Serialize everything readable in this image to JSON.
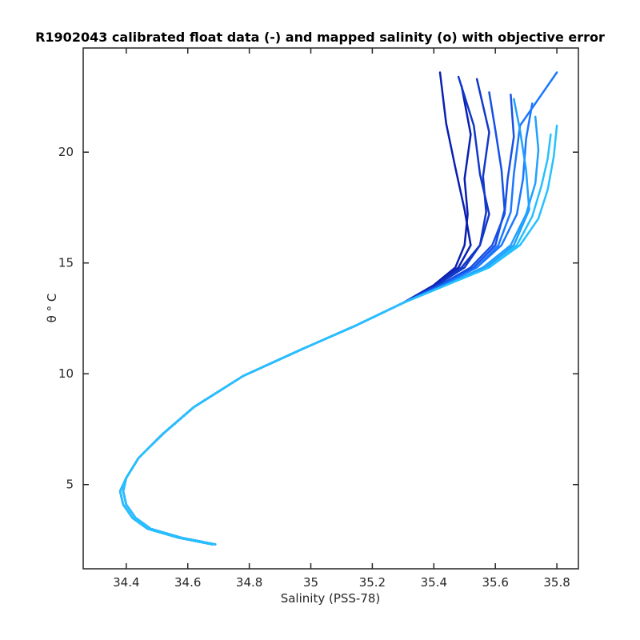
{
  "chart_data": {
    "type": "line",
    "title": "R1902043 calibrated float data (-) and mapped salinity (o) with objective error",
    "xlabel": "Salinity (PSS-78)",
    "ylabel": "θ ° C",
    "xlim": [
      34.26,
      35.87
    ],
    "ylim": [
      1.2,
      24.7
    ],
    "xticks": [
      "34.4",
      "34.6",
      "34.8",
      "35",
      "35.2",
      "35.4",
      "35.6",
      "35.8"
    ],
    "yticks": [
      "5",
      "10",
      "15",
      "20"
    ],
    "grid": false,
    "legend": "none",
    "color_ramp": [
      "#0a1fb0",
      "#1560f0",
      "#25c0ff"
    ],
    "series": [
      {
        "color": "#0a1fb0",
        "x": [
          34.69,
          34.58,
          34.48,
          34.43,
          34.4,
          34.39,
          34.4,
          34.44,
          34.52,
          34.62,
          34.78,
          34.97,
          35.15,
          35.3,
          35.4,
          35.47,
          35.5,
          35.51,
          35.5,
          35.52,
          35.49
        ],
        "y": [
          2.3,
          2.6,
          3.0,
          3.5,
          4.1,
          4.7,
          5.3,
          6.2,
          7.3,
          8.5,
          9.9,
          11.1,
          12.2,
          13.2,
          14.0,
          14.8,
          15.8,
          17.2,
          18.8,
          20.8,
          23.0
        ]
      },
      {
        "color": "#0a1fb0",
        "x": [
          34.68,
          34.57,
          34.47,
          34.42,
          34.39,
          34.38,
          34.4,
          34.44,
          34.52,
          34.62,
          34.78,
          34.97,
          35.15,
          35.3,
          35.41,
          35.48,
          35.52,
          35.5,
          35.47,
          35.44,
          35.42
        ],
        "y": [
          2.3,
          2.6,
          3.0,
          3.5,
          4.1,
          4.7,
          5.3,
          6.2,
          7.3,
          8.5,
          9.9,
          11.1,
          12.2,
          13.2,
          14.0,
          14.8,
          15.8,
          17.4,
          19.3,
          21.3,
          23.6
        ]
      },
      {
        "color": "#1238c8",
        "x": [
          34.69,
          34.58,
          34.48,
          34.43,
          34.4,
          34.39,
          34.4,
          34.44,
          34.52,
          34.62,
          34.78,
          34.97,
          35.15,
          35.3,
          35.41,
          35.49,
          35.55,
          35.57,
          35.56,
          35.58,
          35.54
        ],
        "y": [
          2.3,
          2.6,
          3.0,
          3.5,
          4.1,
          4.7,
          5.3,
          6.2,
          7.3,
          8.5,
          9.9,
          11.1,
          12.2,
          13.2,
          14.0,
          14.8,
          15.8,
          17.3,
          18.9,
          20.9,
          23.3
        ]
      },
      {
        "color": "#1238c8",
        "x": [
          34.68,
          34.57,
          34.47,
          34.42,
          34.39,
          34.38,
          34.4,
          34.44,
          34.52,
          34.62,
          34.78,
          34.97,
          35.15,
          35.3,
          35.41,
          35.5,
          35.55,
          35.58,
          35.55,
          35.53,
          35.48
        ],
        "y": [
          2.3,
          2.6,
          3.0,
          3.5,
          4.1,
          4.7,
          5.3,
          6.2,
          7.3,
          8.5,
          9.9,
          11.1,
          12.2,
          13.2,
          14.0,
          14.8,
          15.8,
          17.2,
          19.0,
          21.2,
          23.4
        ]
      },
      {
        "color": "#1650e6",
        "x": [
          34.69,
          34.58,
          34.48,
          34.43,
          34.4,
          34.39,
          34.4,
          34.44,
          34.52,
          34.62,
          34.78,
          34.97,
          35.15,
          35.3,
          35.42,
          35.52,
          35.59,
          35.63,
          35.64,
          35.66,
          35.65
        ],
        "y": [
          2.3,
          2.6,
          3.0,
          3.5,
          4.1,
          4.7,
          5.3,
          6.2,
          7.3,
          8.5,
          9.9,
          11.1,
          12.2,
          13.2,
          14.0,
          14.8,
          15.8,
          17.2,
          18.8,
          20.7,
          22.6
        ]
      },
      {
        "color": "#1650e6",
        "x": [
          34.68,
          34.57,
          34.47,
          34.42,
          34.39,
          34.38,
          34.4,
          34.44,
          34.52,
          34.62,
          34.78,
          34.97,
          35.15,
          35.3,
          35.43,
          35.53,
          35.6,
          35.63,
          35.62,
          35.6,
          35.58
        ],
        "y": [
          2.3,
          2.6,
          3.0,
          3.5,
          4.1,
          4.7,
          5.3,
          6.2,
          7.3,
          8.5,
          9.9,
          11.1,
          12.2,
          13.2,
          14.0,
          14.8,
          15.8,
          17.4,
          19.2,
          21.0,
          22.7
        ]
      },
      {
        "color": "#1a78ff",
        "x": [
          34.69,
          34.58,
          34.48,
          34.43,
          34.4,
          34.39,
          34.4,
          34.44,
          34.52,
          34.62,
          34.78,
          34.97,
          35.15,
          35.3,
          35.43,
          35.54,
          35.62,
          35.67,
          35.69,
          35.7,
          35.72
        ],
        "y": [
          2.3,
          2.6,
          3.0,
          3.5,
          4.1,
          4.7,
          5.3,
          6.2,
          7.3,
          8.5,
          9.9,
          11.1,
          12.2,
          13.2,
          14.0,
          14.8,
          15.8,
          17.2,
          18.8,
          20.6,
          22.2
        ]
      },
      {
        "color": "#1a78ff",
        "x": [
          34.68,
          34.57,
          34.47,
          34.42,
          34.39,
          34.38,
          34.4,
          34.44,
          34.52,
          34.62,
          34.78,
          34.97,
          35.15,
          35.3,
          35.43,
          35.54,
          35.61,
          35.65,
          35.66,
          35.68,
          35.8
        ],
        "y": [
          2.3,
          2.6,
          3.0,
          3.5,
          4.1,
          4.7,
          5.3,
          6.2,
          7.3,
          8.5,
          9.9,
          11.1,
          12.2,
          13.2,
          14.0,
          14.8,
          15.8,
          17.3,
          19.0,
          21.2,
          23.6
        ]
      },
      {
        "color": "#20a0ff",
        "x": [
          34.69,
          34.58,
          34.48,
          34.43,
          34.4,
          34.39,
          34.4,
          34.44,
          34.52,
          34.62,
          34.78,
          34.97,
          35.15,
          35.3,
          35.44,
          35.56,
          35.65,
          35.7,
          35.73,
          35.74,
          35.73
        ],
        "y": [
          2.3,
          2.6,
          3.0,
          3.5,
          4.1,
          4.7,
          5.3,
          6.2,
          7.3,
          8.5,
          9.9,
          11.1,
          12.2,
          13.2,
          14.0,
          14.8,
          15.8,
          17.2,
          18.6,
          20.1,
          21.6
        ]
      },
      {
        "color": "#20a0ff",
        "x": [
          34.68,
          34.57,
          34.47,
          34.42,
          34.39,
          34.38,
          34.4,
          34.44,
          34.52,
          34.62,
          34.78,
          34.97,
          35.15,
          35.3,
          35.44,
          35.57,
          35.66,
          35.71,
          35.7,
          35.68,
          35.66
        ],
        "y": [
          2.3,
          2.6,
          3.0,
          3.5,
          4.1,
          4.7,
          5.3,
          6.2,
          7.3,
          8.5,
          9.9,
          11.1,
          12.2,
          13.2,
          14.0,
          14.8,
          15.8,
          17.4,
          19.2,
          21.0,
          22.4
        ]
      },
      {
        "color": "#25c0ff",
        "x": [
          34.69,
          34.58,
          34.48,
          34.43,
          34.4,
          34.39,
          34.4,
          34.44,
          34.52,
          34.62,
          34.78,
          34.97,
          35.15,
          35.3,
          35.44,
          35.58,
          35.68,
          35.74,
          35.77,
          35.79,
          35.8
        ],
        "y": [
          2.3,
          2.6,
          3.0,
          3.5,
          4.1,
          4.7,
          5.3,
          6.2,
          7.3,
          8.5,
          9.9,
          11.1,
          12.2,
          13.2,
          14.0,
          14.8,
          15.8,
          17.0,
          18.3,
          19.8,
          21.2
        ]
      },
      {
        "color": "#25c0ff",
        "x": [
          34.68,
          34.57,
          34.47,
          34.42,
          34.39,
          34.38,
          34.4,
          34.44,
          34.52,
          34.62,
          34.78,
          34.97,
          35.15,
          35.3,
          35.44,
          35.58,
          35.67,
          35.72,
          35.75,
          35.77,
          35.78
        ],
        "y": [
          2.3,
          2.6,
          3.0,
          3.5,
          4.1,
          4.7,
          5.3,
          6.2,
          7.3,
          8.5,
          9.9,
          11.1,
          12.2,
          13.2,
          14.0,
          14.8,
          15.8,
          17.1,
          18.5,
          19.7,
          20.8
        ]
      }
    ]
  }
}
